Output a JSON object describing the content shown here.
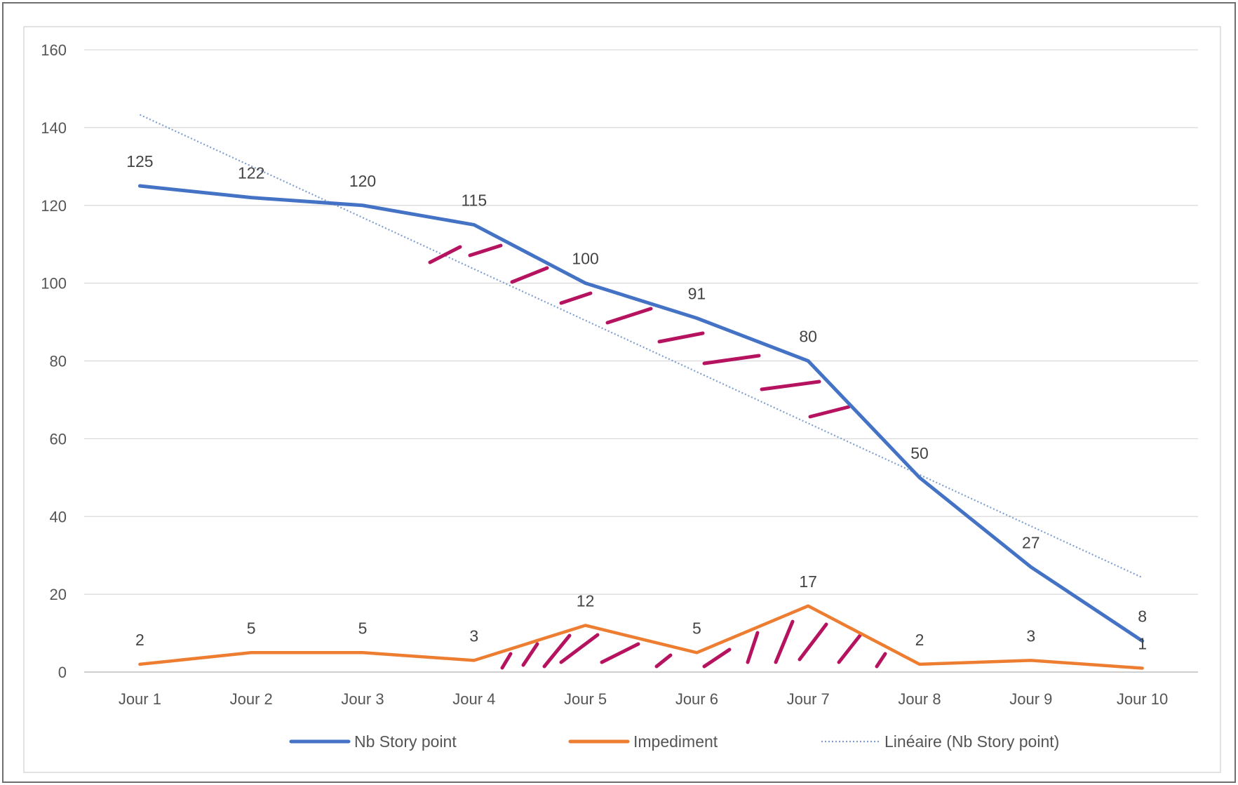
{
  "chart_data": {
    "type": "line",
    "title": "",
    "xlabel": "",
    "ylabel": "",
    "categories": [
      "Jour 1",
      "Jour 2",
      "Jour 3",
      "Jour 4",
      "Jour 5",
      "Jour 6",
      "Jour 7",
      "Jour 8",
      "Jour 9",
      "Jour 10"
    ],
    "ylim": [
      0,
      160
    ],
    "yticks": [
      0,
      20,
      40,
      60,
      80,
      100,
      120,
      140,
      160
    ],
    "grid": true,
    "legend_position": "bottom",
    "series": [
      {
        "name": "Nb Story point",
        "color": "#4472C4",
        "values": [
          125,
          122,
          120,
          115,
          100,
          91,
          80,
          50,
          27,
          8
        ]
      },
      {
        "name": "Impediment",
        "color": "#ED7D31",
        "values": [
          2,
          5,
          5,
          3,
          12,
          5,
          17,
          2,
          3,
          1
        ]
      }
    ],
    "trendline": {
      "name": "Linéaire (Nb Story point)",
      "color": "#7F9FCF",
      "style": "dotted",
      "of_series": "Nb Story point"
    },
    "annotation_color": "#B5135F"
  }
}
